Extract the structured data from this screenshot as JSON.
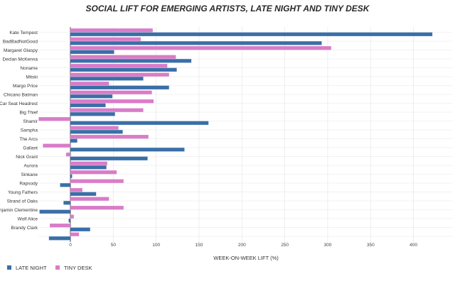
{
  "colors": {
    "late_night": "#3a6fa8",
    "tiny_desk": "#d97cc8",
    "grid": "#e6e6e6",
    "zero_line": "#444444"
  },
  "chart_data": {
    "type": "bar",
    "orientation": "horizontal",
    "title": "SOCIAL LIFT FOR EMERGING ARTISTS, LATE NIGHT AND TINY DESK",
    "xlabel": "WEEK-ON-WEEK LIFT (%)",
    "ylabel": "",
    "xlim": [
      -37,
      445
    ],
    "xticks": [
      0,
      50,
      100,
      150,
      200,
      250,
      300,
      350,
      400
    ],
    "grid": true,
    "legend_position": "bottom-left",
    "categories": [
      "Kate Tempest",
      "BadBadNotGood",
      "Margaret Glaspy",
      "Declan McKenna",
      "Noname",
      "Mitski",
      "Margo Price",
      "Chicano Batman",
      "Car Seat Headrest",
      "Big Thief",
      "Shamir",
      "Sampha",
      "The Arcs",
      "Gallant",
      "Nick Grant",
      "Aurora",
      "Sinkane",
      "Rapsody",
      "Young Fathers",
      "Strand of Oaks",
      "Benjamin Clementine",
      "Wolf Alice",
      "Brandy Clark",
      ""
    ],
    "category_labels": [
      "Kate Tempest",
      "BadBadNotGood",
      "Margaret Glaspy",
      "Declan McKenna",
      "Noname",
      "Mitski",
      "Margo Price",
      "Chicano Batman",
      "Car Seat Headrest",
      "Big Thief",
      "Shamir",
      "Sampha",
      "The Arcs",
      "Gallant",
      "Nick Grant",
      "Aurora",
      "Sinkane",
      "Rapsody",
      "Young Fathers",
      "Strand of Oaks",
      "enjamin Clementine",
      "Wolf Alice",
      "Brandy Clark",
      ""
    ],
    "series": [
      {
        "name": "LATE NIGHT",
        "values": [
          422,
          293,
          51,
          141,
          124,
          85,
          115,
          49,
          41,
          52,
          161,
          61,
          8,
          133,
          90,
          42,
          2,
          -12,
          30,
          -8,
          -36,
          -2,
          23,
          -25
        ]
      },
      {
        "name": "TINY DESK",
        "values": [
          96,
          82,
          304,
          123,
          113,
          115,
          45,
          95,
          97,
          85,
          -37,
          56,
          91,
          -32,
          -5,
          43,
          54,
          62,
          14,
          45,
          62,
          4,
          -24,
          10
        ]
      }
    ]
  }
}
